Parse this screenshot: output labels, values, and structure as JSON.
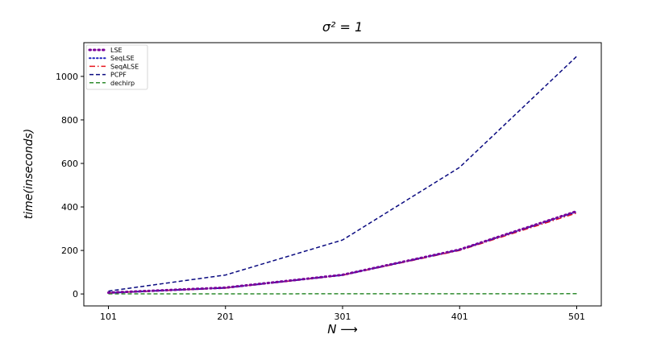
{
  "chart_data": {
    "type": "line",
    "title": "σ² = 1",
    "xlabel": "N ⟶",
    "ylabel": "time(inseconds)",
    "x": [
      101,
      201,
      301,
      401,
      501
    ],
    "xticks": [
      "101",
      "201",
      "301",
      "401",
      "501"
    ],
    "yticks": [
      0,
      200,
      400,
      600,
      800,
      1000
    ],
    "xlim": [
      80,
      522
    ],
    "ylim": [
      -55,
      1155
    ],
    "grid": false,
    "legend_position": "top-left",
    "series": [
      {
        "name": "LSE",
        "values": [
          6,
          29,
          88,
          204,
          380
        ],
        "color": "#7b0099",
        "dash": "dot-thick"
      },
      {
        "name": "SeqLSE",
        "values": [
          5,
          28,
          87,
          203,
          378
        ],
        "color": "#1f1fbf",
        "dash": "dot"
      },
      {
        "name": "SeqALSE",
        "values": [
          5,
          27,
          86,
          200,
          372
        ],
        "color": "#e8151d",
        "dash": "dashdot"
      },
      {
        "name": "PCPF",
        "values": [
          13,
          87,
          248,
          582,
          1092
        ],
        "color": "#0a0a80",
        "dash": "dash"
      },
      {
        "name": "dechirp",
        "values": [
          0.5,
          0.6,
          0.8,
          1.0,
          1.2
        ],
        "color": "#2e8b2e",
        "dash": "dash"
      }
    ]
  }
}
